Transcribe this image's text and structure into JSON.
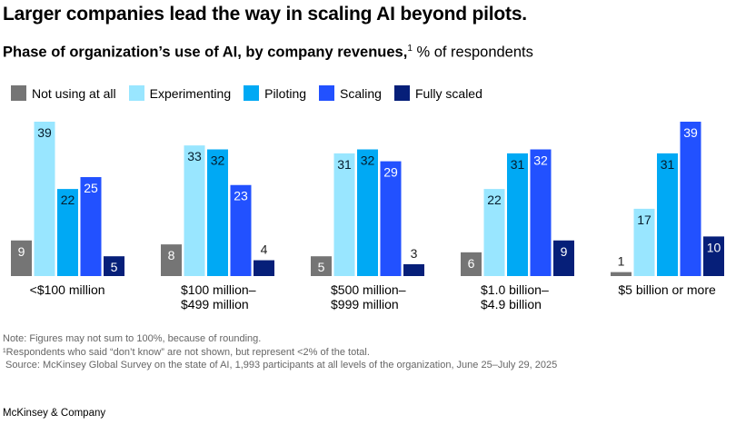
{
  "title": "Larger companies lead the way in scaling AI beyond pilots.",
  "subtitle": {
    "bold": "Phase of organization’s use of AI, by company revenues,",
    "sup": "1",
    "normal": " % of respondents"
  },
  "chart_data": {
    "type": "bar",
    "categories": [
      [
        "<$100 million"
      ],
      [
        "$100 million–",
        "$499 million"
      ],
      [
        "$500 million–",
        "$999 million"
      ],
      [
        "$1.0 billion–",
        "$4.9 billion"
      ],
      [
        "$5 billion or more"
      ]
    ],
    "series": [
      {
        "name": "Not using at all",
        "color": "#757575",
        "label_color": "#ffffff",
        "values": [
          9,
          8,
          5,
          6,
          1
        ]
      },
      {
        "name": "Experimenting",
        "color": "#99e6ff",
        "label_color": "#051c2c",
        "values": [
          39,
          33,
          31,
          22,
          17
        ]
      },
      {
        "name": "Piloting",
        "color": "#00a9f4",
        "label_color": "#051c2c",
        "values": [
          22,
          32,
          32,
          31,
          31
        ]
      },
      {
        "name": "Scaling",
        "color": "#2251ff",
        "label_color": "#ffffff",
        "values": [
          25,
          23,
          29,
          32,
          39
        ]
      },
      {
        "name": "Fully scaled",
        "color": "#061f79",
        "label_color": "#ffffff",
        "values": [
          5,
          4,
          3,
          9,
          10
        ]
      }
    ],
    "ylim": [
      0,
      40
    ],
    "legend": "top-left",
    "grid": false
  },
  "notes": [
    "Note: Figures may not sum to 100%, because of rounding.",
    "¹Respondents who said “don’t know” are not shown, but represent <2% of the total.",
    " Source: McKinsey Global Survey on the state of AI, 1,993 participants at all levels of the organization, June 25–July 29, 2025"
  ],
  "brand": "McKinsey & Company"
}
